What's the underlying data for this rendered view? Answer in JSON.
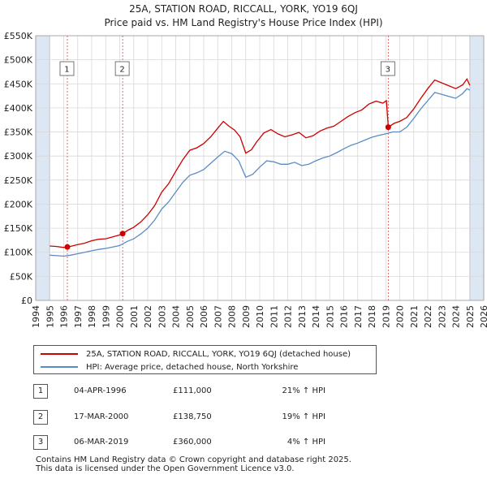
{
  "title": "25A, STATION ROAD, RICCALL, YORK, YO19 6QJ",
  "subtitle": "Price paid vs. HM Land Registry's House Price Index (HPI)",
  "legend": {
    "red_label": "25A, STATION ROAD, RICCALL, YORK, YO19 6QJ (detached house)",
    "blue_label": "HPI: Average price, detached house, North Yorkshire"
  },
  "transactions": [
    {
      "num": "1",
      "date": "04-APR-1996",
      "price": "£111,000",
      "hpi": "21% ↑ HPI"
    },
    {
      "num": "2",
      "date": "17-MAR-2000",
      "price": "£138,750",
      "hpi": "19% ↑ HPI"
    },
    {
      "num": "3",
      "date": "06-MAR-2019",
      "price": "£360,000",
      "hpi": "4% ↑ HPI"
    }
  ],
  "footer": {
    "line1": "Contains HM Land Registry data © Crown copyright and database right 2025.",
    "line2": "This data is licensed under the Open Government Licence v3.0."
  },
  "colors": {
    "property": "#cc0000",
    "hpi": "#5b8bc5",
    "shade": "#dde7f3",
    "marker_line": "#dd4444"
  },
  "chart_data": {
    "type": "line",
    "title": "25A, STATION ROAD, RICCALL, YORK, YO19 6QJ",
    "subtitle": "Price paid vs. HM Land Registry's House Price Index (HPI)",
    "x_ticks": [
      "1994",
      "1995",
      "1996",
      "1997",
      "1998",
      "1999",
      "2000",
      "2001",
      "2002",
      "2003",
      "2004",
      "2005",
      "2006",
      "2007",
      "2008",
      "2009",
      "2010",
      "2011",
      "2012",
      "2013",
      "2014",
      "2015",
      "2016",
      "2017",
      "2018",
      "2019",
      "2020",
      "2021",
      "2022",
      "2023",
      "2024",
      "2025",
      "2026"
    ],
    "y_ticks": [
      "£0",
      "£50K",
      "£100K",
      "£150K",
      "£200K",
      "£250K",
      "£300K",
      "£350K",
      "£400K",
      "£450K",
      "£500K",
      "£550K"
    ],
    "xlim": [
      1994,
      2026
    ],
    "ylim": [
      0,
      550000
    ],
    "grid": true,
    "shaded_ranges": [
      [
        1994,
        1995
      ],
      [
        2025,
        2026
      ]
    ],
    "sale_markers": [
      {
        "label": "1",
        "x": 1996.26,
        "y": 111000
      },
      {
        "label": "2",
        "x": 2000.21,
        "y": 138750
      },
      {
        "label": "3",
        "x": 2019.18,
        "y": 360000
      }
    ],
    "series": [
      {
        "name": "25A, STATION ROAD, RICCALL, YORK, YO19 6QJ (detached house)",
        "color": "#cc0000",
        "points": [
          [
            1995.0,
            113000
          ],
          [
            1995.5,
            112000
          ],
          [
            1996.0,
            110000
          ],
          [
            1996.26,
            111000
          ],
          [
            1996.6,
            113000
          ],
          [
            1997.0,
            116000
          ],
          [
            1997.5,
            119000
          ],
          [
            1998.0,
            124000
          ],
          [
            1998.5,
            127000
          ],
          [
            1999.0,
            128000
          ],
          [
            1999.5,
            132000
          ],
          [
            2000.0,
            136000
          ],
          [
            2000.21,
            138750
          ],
          [
            2000.6,
            146000
          ],
          [
            2001.0,
            152000
          ],
          [
            2001.5,
            163000
          ],
          [
            2002.0,
            178000
          ],
          [
            2002.5,
            197000
          ],
          [
            2003.0,
            225000
          ],
          [
            2003.5,
            243000
          ],
          [
            2004.0,
            268000
          ],
          [
            2004.5,
            292000
          ],
          [
            2005.0,
            312000
          ],
          [
            2005.5,
            317000
          ],
          [
            2006.0,
            326000
          ],
          [
            2006.5,
            340000
          ],
          [
            2007.0,
            358000
          ],
          [
            2007.4,
            372000
          ],
          [
            2007.8,
            362000
          ],
          [
            2008.2,
            354000
          ],
          [
            2008.6,
            340000
          ],
          [
            2009.0,
            306000
          ],
          [
            2009.4,
            313000
          ],
          [
            2009.8,
            330000
          ],
          [
            2010.3,
            348000
          ],
          [
            2010.8,
            355000
          ],
          [
            2011.3,
            346000
          ],
          [
            2011.8,
            340000
          ],
          [
            2012.3,
            344000
          ],
          [
            2012.8,
            349000
          ],
          [
            2013.3,
            338000
          ],
          [
            2013.8,
            342000
          ],
          [
            2014.3,
            352000
          ],
          [
            2014.8,
            358000
          ],
          [
            2015.3,
            362000
          ],
          [
            2015.8,
            372000
          ],
          [
            2016.3,
            382000
          ],
          [
            2016.8,
            390000
          ],
          [
            2017.3,
            396000
          ],
          [
            2017.8,
            408000
          ],
          [
            2018.3,
            414000
          ],
          [
            2018.8,
            410000
          ],
          [
            2019.05,
            415000
          ],
          [
            2019.18,
            360000
          ],
          [
            2019.6,
            368000
          ],
          [
            2020.0,
            372000
          ],
          [
            2020.5,
            380000
          ],
          [
            2021.0,
            398000
          ],
          [
            2021.5,
            420000
          ],
          [
            2022.0,
            440000
          ],
          [
            2022.5,
            458000
          ],
          [
            2023.0,
            452000
          ],
          [
            2023.5,
            446000
          ],
          [
            2024.0,
            440000
          ],
          [
            2024.5,
            448000
          ],
          [
            2024.8,
            460000
          ],
          [
            2025.0,
            447000
          ]
        ]
      },
      {
        "name": "HPI: Average price, detached house, North Yorkshire",
        "color": "#5b8bc5",
        "points": [
          [
            1995.0,
            94000
          ],
          [
            1995.5,
            93000
          ],
          [
            1996.0,
            92000
          ],
          [
            1996.5,
            94000
          ],
          [
            1997.0,
            97000
          ],
          [
            1997.5,
            100000
          ],
          [
            1998.0,
            103000
          ],
          [
            1998.5,
            106000
          ],
          [
            1999.0,
            108000
          ],
          [
            1999.5,
            111000
          ],
          [
            2000.0,
            114000
          ],
          [
            2000.5,
            122000
          ],
          [
            2001.0,
            128000
          ],
          [
            2001.5,
            138000
          ],
          [
            2002.0,
            150000
          ],
          [
            2002.5,
            167000
          ],
          [
            2003.0,
            190000
          ],
          [
            2003.5,
            205000
          ],
          [
            2004.0,
            225000
          ],
          [
            2004.5,
            245000
          ],
          [
            2005.0,
            260000
          ],
          [
            2005.5,
            265000
          ],
          [
            2006.0,
            272000
          ],
          [
            2006.5,
            285000
          ],
          [
            2007.0,
            298000
          ],
          [
            2007.5,
            310000
          ],
          [
            2008.0,
            305000
          ],
          [
            2008.5,
            290000
          ],
          [
            2009.0,
            256000
          ],
          [
            2009.5,
            262000
          ],
          [
            2010.0,
            277000
          ],
          [
            2010.5,
            290000
          ],
          [
            2011.0,
            288000
          ],
          [
            2011.5,
            283000
          ],
          [
            2012.0,
            283000
          ],
          [
            2012.5,
            287000
          ],
          [
            2013.0,
            280000
          ],
          [
            2013.5,
            283000
          ],
          [
            2014.0,
            290000
          ],
          [
            2014.5,
            296000
          ],
          [
            2015.0,
            300000
          ],
          [
            2015.5,
            307000
          ],
          [
            2016.0,
            315000
          ],
          [
            2016.5,
            322000
          ],
          [
            2017.0,
            327000
          ],
          [
            2017.5,
            333000
          ],
          [
            2018.0,
            339000
          ],
          [
            2018.5,
            343000
          ],
          [
            2019.0,
            346000
          ],
          [
            2019.5,
            350000
          ],
          [
            2020.0,
            350000
          ],
          [
            2020.5,
            360000
          ],
          [
            2021.0,
            378000
          ],
          [
            2021.5,
            398000
          ],
          [
            2022.0,
            415000
          ],
          [
            2022.5,
            432000
          ],
          [
            2023.0,
            428000
          ],
          [
            2023.5,
            424000
          ],
          [
            2024.0,
            420000
          ],
          [
            2024.5,
            430000
          ],
          [
            2024.8,
            440000
          ],
          [
            2025.0,
            437000
          ]
        ]
      }
    ]
  }
}
